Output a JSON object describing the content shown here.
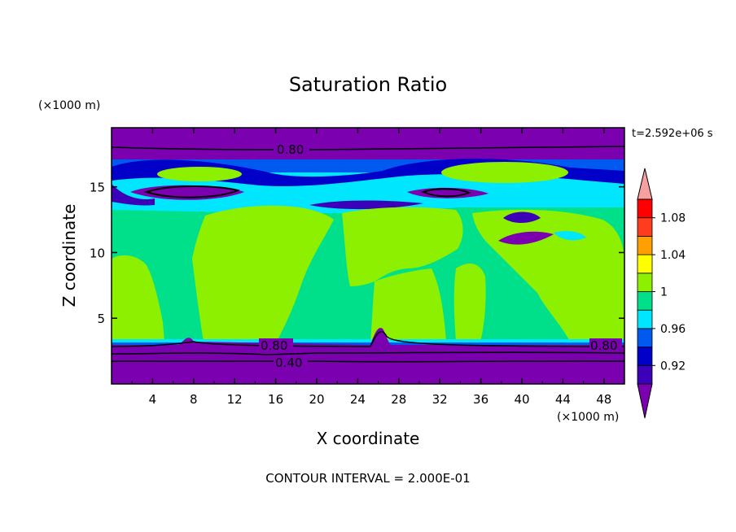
{
  "chart_data": {
    "type": "heatmap",
    "title": "Saturation Ratio",
    "xlabel": "X coordinate",
    "ylabel": "Z coordinate",
    "x_unit": "(×1000 m)",
    "y_unit": "(×1000 m)",
    "time_label": "t=2.592e+06 s",
    "footer": "CONTOUR INTERVAL = 2.000E-01",
    "xlim": [
      0,
      50
    ],
    "ylim": [
      0,
      19.5
    ],
    "x_ticks": [
      4,
      8,
      12,
      16,
      20,
      24,
      28,
      32,
      36,
      40,
      44,
      48
    ],
    "y_ticks": [
      5,
      10,
      15
    ],
    "colorbar": {
      "levels": [
        0.9,
        0.92,
        0.94,
        0.96,
        0.98,
        1.0,
        1.02,
        1.04,
        1.06,
        1.08,
        1.1
      ],
      "tick_labels": [
        "0.92",
        "0.96",
        "1",
        "1.04",
        "1.08"
      ],
      "tick_values": [
        0.92,
        0.96,
        1.0,
        1.04,
        1.08
      ],
      "colors": [
        "#7a00b0",
        "#3c00b8",
        "#0000c8",
        "#005af0",
        "#00e6ff",
        "#00e08a",
        "#8cf000",
        "#ffff00",
        "#ffa000",
        "#ff3c1e",
        "#ff0000",
        "#f6a0a0"
      ],
      "under_color": "#7a00b0",
      "over_color": "#f6a0a0"
    },
    "contour_labels": [
      {
        "text": "0.80",
        "x": 19,
        "z": 18.1
      },
      {
        "text": "0.80",
        "x": 15,
        "z": 3.0
      },
      {
        "text": "0.80",
        "x": 48.5,
        "z": 3.0
      },
      {
        "text": "0.40",
        "x": 17,
        "z": 1.7
      }
    ],
    "layers": [
      {
        "zmin": 0,
        "zmax": 3.4,
        "value": 0.4,
        "color": "#7a00b0"
      },
      {
        "zmin": 3.4,
        "zmax": 13.5,
        "value": 0.99,
        "color": "#00e08a"
      },
      {
        "zmin": 13.5,
        "zmax": 17.0,
        "value": 0.96,
        "color": "#005af0"
      },
      {
        "zmin": 17.0,
        "zmax": 19.5,
        "value": 0.8,
        "color": "#7a00b0"
      }
    ]
  }
}
